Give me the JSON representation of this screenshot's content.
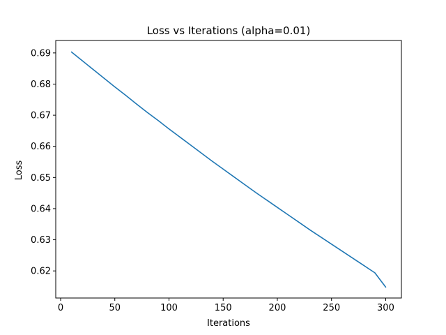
{
  "chart_data": {
    "type": "line",
    "title": "Loss vs Iterations (alpha=0.01)",
    "xlabel": "Iterations",
    "ylabel": "Loss",
    "xlim": [
      -4.5,
      314.5
    ],
    "ylim": [
      0.6113,
      0.694
    ],
    "xticks": [
      0,
      50,
      100,
      150,
      200,
      250,
      300
    ],
    "xtick_labels": [
      "0",
      "50",
      "100",
      "150",
      "200",
      "250",
      "300"
    ],
    "yticks": [
      0.62,
      0.63,
      0.64,
      0.65,
      0.66,
      0.67,
      0.68,
      0.69
    ],
    "ytick_labels": [
      "0.62",
      "0.63",
      "0.64",
      "0.65",
      "0.66",
      "0.67",
      "0.68",
      "0.69"
    ],
    "grid": false,
    "series": [
      {
        "name": "loss",
        "color": "#1f77b4",
        "x": [
          10,
          20,
          30,
          40,
          50,
          60,
          70,
          80,
          90,
          100,
          110,
          120,
          130,
          140,
          150,
          160,
          170,
          180,
          190,
          200,
          210,
          220,
          230,
          240,
          250,
          260,
          270,
          280,
          290,
          300
        ],
        "y": [
          0.6903,
          0.6875,
          0.6847,
          0.6819,
          0.6791,
          0.6764,
          0.6736,
          0.6709,
          0.6683,
          0.6656,
          0.663,
          0.6604,
          0.6578,
          0.6552,
          0.6527,
          0.6502,
          0.6477,
          0.6452,
          0.6428,
          0.6404,
          0.638,
          0.6356,
          0.6332,
          0.6309,
          0.6286,
          0.6263,
          0.624,
          0.6217,
          0.6194,
          0.6148
        ]
      }
    ]
  }
}
